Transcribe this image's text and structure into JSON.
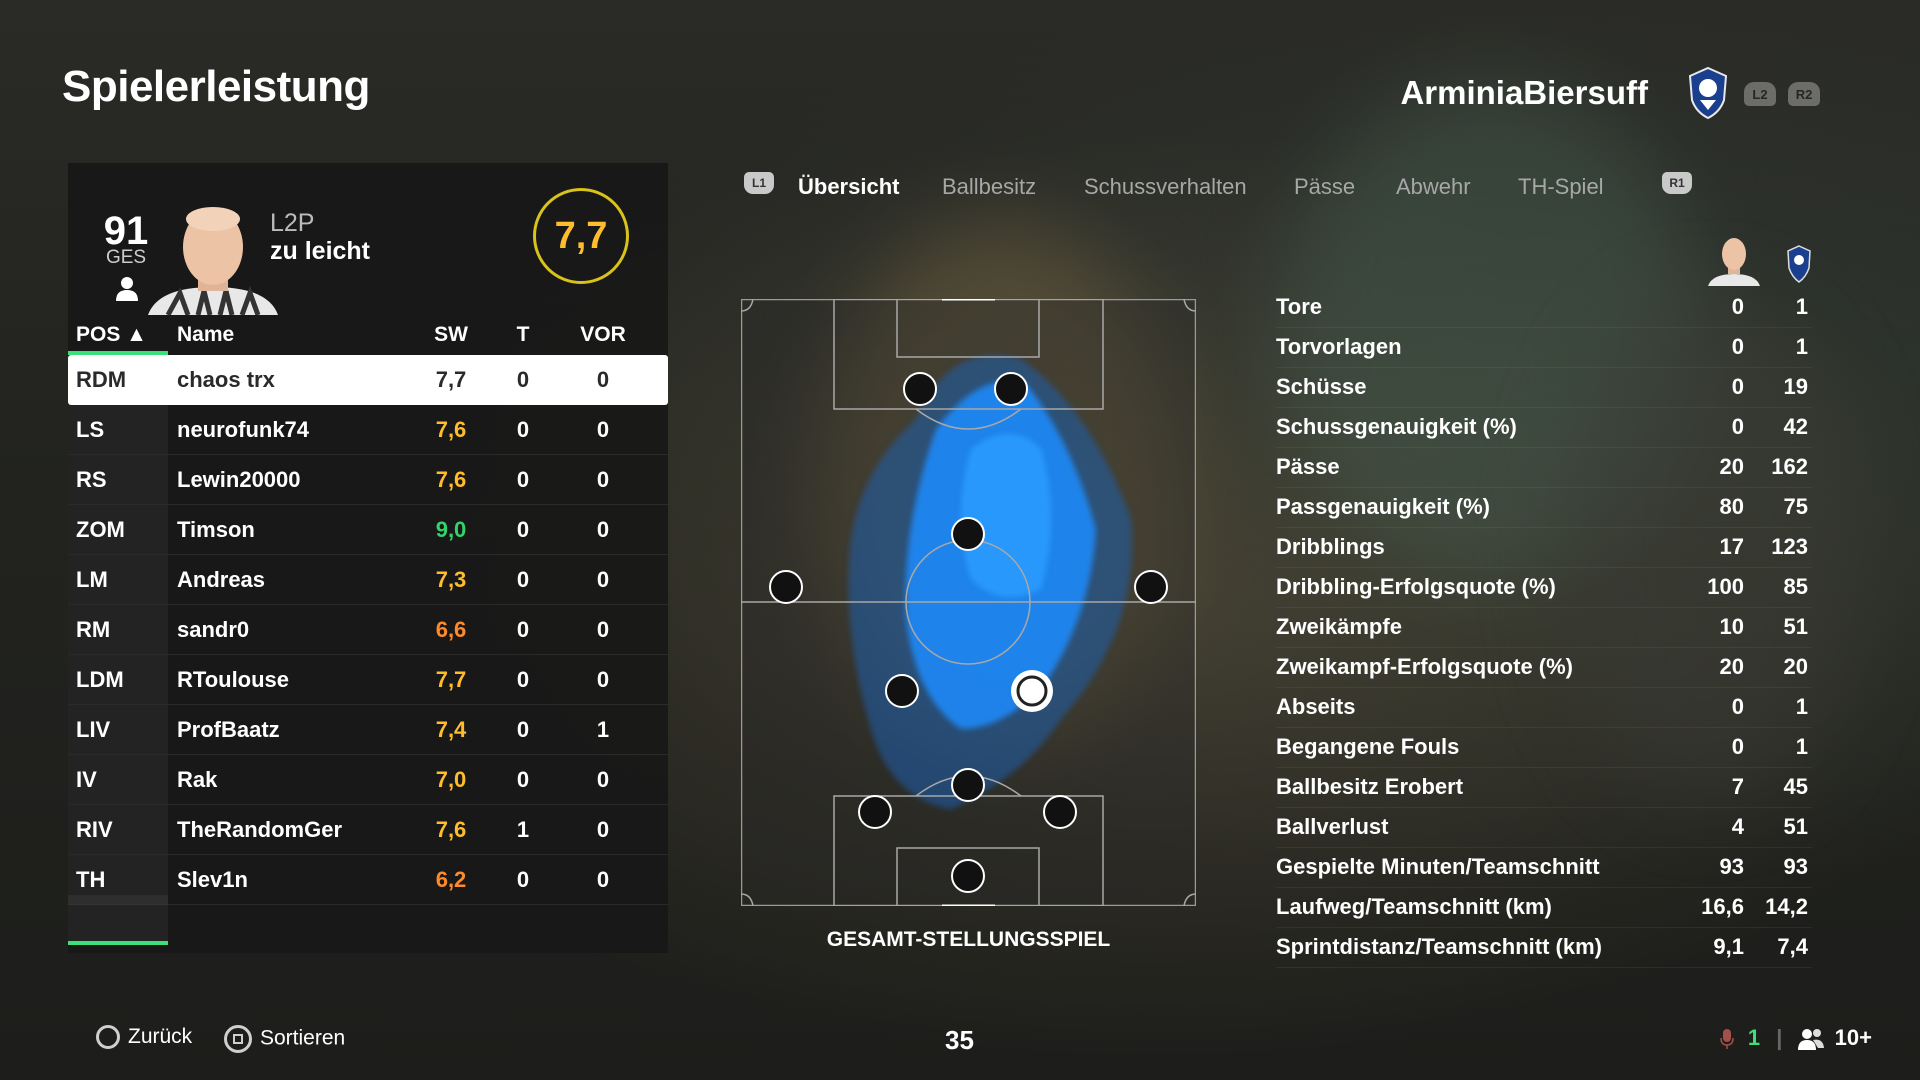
{
  "title": "Spielerleistung",
  "club": {
    "name": "ArminiaBiersuff",
    "shoulder_left": "L2",
    "shoulder_right": "R2"
  },
  "player": {
    "rating": "91",
    "rating_label": "GES",
    "difficulty_line1": "L2P",
    "difficulty_line2": "zu leicht",
    "match_rating": "7,7"
  },
  "table": {
    "headers": {
      "pos": "POS ▲",
      "name": "Name",
      "sw": "SW",
      "t": "T",
      "vor": "VOR"
    },
    "rows": [
      {
        "pos": "RDM",
        "name": "chaos trx",
        "sw": "7,7",
        "sw_color": "#2a2a2a",
        "t": "0",
        "vor": "0"
      },
      {
        "pos": "LS",
        "name": "neurofunk74",
        "sw": "7,6",
        "sw_color": "#ffbd2c",
        "t": "0",
        "vor": "0"
      },
      {
        "pos": "RS",
        "name": "Lewin20000",
        "sw": "7,6",
        "sw_color": "#ffbd2c",
        "t": "0",
        "vor": "0"
      },
      {
        "pos": "ZOM",
        "name": "Timson",
        "sw": "9,0",
        "sw_color": "#33d36a",
        "t": "0",
        "vor": "0"
      },
      {
        "pos": "LM",
        "name": "Andreas",
        "sw": "7,3",
        "sw_color": "#ffbd2c",
        "t": "0",
        "vor": "0"
      },
      {
        "pos": "RM",
        "name": "sandr0",
        "sw": "6,6",
        "sw_color": "#ff8a2a",
        "t": "0",
        "vor": "0"
      },
      {
        "pos": "LDM",
        "name": "RToulouse",
        "sw": "7,7",
        "sw_color": "#ffbd2c",
        "t": "0",
        "vor": "0"
      },
      {
        "pos": "LIV",
        "name": "ProfBaatz",
        "sw": "7,4",
        "sw_color": "#ffbd2c",
        "t": "0",
        "vor": "1"
      },
      {
        "pos": "IV",
        "name": "Rak",
        "sw": "7,0",
        "sw_color": "#ffbd2c",
        "t": "0",
        "vor": "0"
      },
      {
        "pos": "RIV",
        "name": "TheRandomGer",
        "sw": "7,6",
        "sw_color": "#ffbd2c",
        "t": "1",
        "vor": "0"
      },
      {
        "pos": "TH",
        "name": "Slev1n",
        "sw": "6,2",
        "sw_color": "#ff8a2a",
        "t": "0",
        "vor": "0"
      }
    ]
  },
  "tabs": {
    "left_button": "L1",
    "right_button": "R1",
    "items": [
      "Übersicht",
      "Ballbesitz",
      "Schussverhalten",
      "Pässe",
      "Abwehr",
      "TH-Spiel"
    ],
    "active": 0
  },
  "pitch": {
    "label": "GESAMT-STELLUNGSSPIEL"
  },
  "stats": [
    {
      "label": "Tore",
      "player": "0",
      "team": "1"
    },
    {
      "label": "Torvorlagen",
      "player": "0",
      "team": "1"
    },
    {
      "label": "Schüsse",
      "player": "0",
      "team": "19"
    },
    {
      "label": "Schussgenauigkeit (%)",
      "player": "0",
      "team": "42"
    },
    {
      "label": "Pässe",
      "player": "20",
      "team": "162"
    },
    {
      "label": "Passgenauigkeit (%)",
      "player": "80",
      "team": "75"
    },
    {
      "label": "Dribblings",
      "player": "17",
      "team": "123"
    },
    {
      "label": "Dribbling-Erfolgsquote (%)",
      "player": "100",
      "team": "85"
    },
    {
      "label": "Zweikämpfe",
      "player": "10",
      "team": "51"
    },
    {
      "label": "Zweikampf-Erfolgsquote (%)",
      "player": "20",
      "team": "20"
    },
    {
      "label": "Abseits",
      "player": "0",
      "team": "1"
    },
    {
      "label": "Begangene Fouls",
      "player": "0",
      "team": "1"
    },
    {
      "label": "Ballbesitz Erobert",
      "player": "7",
      "team": "45"
    },
    {
      "label": "Ballverlust",
      "player": "4",
      "team": "51"
    },
    {
      "label": "Gespielte Minuten/Teamschnitt",
      "player": "93",
      "team": "93"
    },
    {
      "label": "Laufweg/Teamschnitt (km)",
      "player": "16,6",
      "team": "14,2"
    },
    {
      "label": "Sprintdistanz/Teamschnitt (km)",
      "player": "9,1",
      "team": "7,4"
    }
  ],
  "footer": {
    "back": "Zurück",
    "sort": "Sortieren",
    "page": "35",
    "voice_count": "1",
    "party": "10+"
  },
  "colors": {
    "accent_green": "#3ae07a",
    "rating_gold": "#ffbd2c",
    "heatmap_blue": "#1e8cff"
  }
}
